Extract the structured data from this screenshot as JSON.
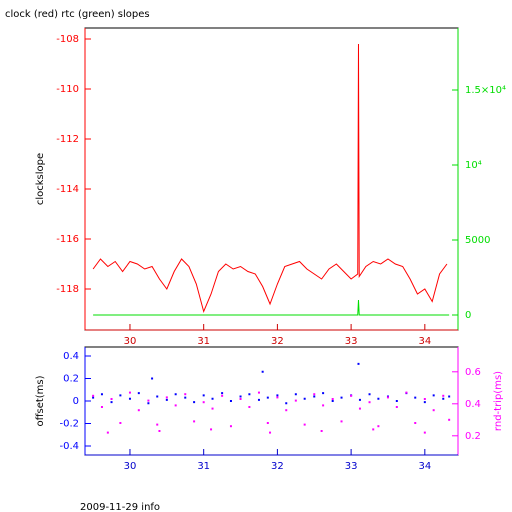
{
  "chart_data": [
    {
      "type": "line",
      "title": "clock (red) rtc (green) slopes",
      "ylabel": "clockslope",
      "xlim": [
        29.39,
        34.45
      ],
      "xticks": [
        30,
        31,
        32,
        33,
        34
      ],
      "ylim": [
        -119.64,
        -107.56
      ],
      "yticks": [
        -118,
        -116,
        -114,
        -112,
        -110,
        -108
      ],
      "y2lim": [
        -1000,
        19133
      ],
      "y2ticks": [
        0,
        5000,
        {
          "value": 10000,
          "label": "10⁴"
        },
        {
          "value": 15000,
          "label": "1.5×10⁴"
        }
      ],
      "axis_colors": {
        "x": "#cc0000",
        "y": "#ff0000",
        "y2": "#00dd00"
      },
      "series": [
        {
          "color": "#ff0000",
          "x": [
            29.5,
            29.6,
            29.7,
            29.8,
            29.9,
            30.0,
            30.1,
            30.2,
            30.3,
            30.4,
            30.5,
            30.6,
            30.7,
            30.8,
            30.9,
            31.0,
            31.1,
            31.2,
            31.3,
            31.4,
            31.5,
            31.6,
            31.7,
            31.8,
            31.9,
            32.0,
            32.1,
            32.2,
            32.3,
            32.4,
            32.5,
            32.6,
            32.7,
            32.8,
            32.9,
            33.0,
            33.09,
            33.1,
            33.11,
            33.2,
            33.3,
            33.4,
            33.5,
            33.6,
            33.7,
            33.8,
            33.9,
            34.0,
            34.1,
            34.2,
            34.3
          ],
          "values": [
            -117.2,
            -116.8,
            -117.1,
            -116.9,
            -117.3,
            -116.9,
            -117.0,
            -117.2,
            -117.1,
            -117.6,
            -118.0,
            -117.3,
            -116.8,
            -117.1,
            -117.8,
            -118.9,
            -118.2,
            -117.3,
            -117.0,
            -117.2,
            -117.1,
            -117.3,
            -117.4,
            -117.9,
            -118.6,
            -117.8,
            -117.1,
            -117.0,
            -116.9,
            -117.2,
            -117.4,
            -117.6,
            -117.2,
            -117.0,
            -117.3,
            -117.6,
            -117.4,
            -108.2,
            -117.5,
            -117.1,
            -116.9,
            -117.0,
            -116.8,
            -117.0,
            -117.1,
            -117.6,
            -118.2,
            -118.0,
            -118.5,
            -117.4,
            -117.0
          ]
        },
        {
          "color": "#00dd00",
          "axis": "y2",
          "x": [
            29.5,
            33.09,
            33.1,
            33.11,
            34.33
          ],
          "values": [
            0,
            0,
            1000,
            0,
            0
          ]
        }
      ]
    },
    {
      "type": "scatter",
      "ylabel": "offset(ms)",
      "y2label": "rnd-trip(ms)",
      "xlim": [
        29.39,
        34.45
      ],
      "xticks": [
        30,
        31,
        32,
        33,
        34
      ],
      "ylim": [
        -0.48,
        0.48
      ],
      "yticks": [
        -0.4,
        -0.2,
        0,
        0.2,
        0.4
      ],
      "y2lim": [
        0.08,
        0.755
      ],
      "y2ticks": [
        0.2,
        0.4,
        0.6
      ],
      "axis_colors": {
        "x": "#0000cc",
        "y": "#0000ff",
        "y2": "#ff00ff"
      },
      "series": [
        {
          "color": "#0000ff",
          "x": [
            29.5,
            29.62,
            29.75,
            29.87,
            30.0,
            30.12,
            30.25,
            30.37,
            30.5,
            30.62,
            30.75,
            30.87,
            31.0,
            31.12,
            31.25,
            31.37,
            31.5,
            31.62,
            31.75,
            31.87,
            32.0,
            32.12,
            32.25,
            32.37,
            32.5,
            32.62,
            32.75,
            32.87,
            33.0,
            33.12,
            33.25,
            33.37,
            33.5,
            33.62,
            33.75,
            33.87,
            34.0,
            34.12,
            34.25,
            34.33,
            30.3,
            31.8,
            33.1
          ],
          "values": [
            0.03,
            0.06,
            -0.01,
            0.05,
            0.02,
            0.07,
            -0.02,
            0.04,
            0.01,
            0.06,
            0.03,
            -0.01,
            0.05,
            0.02,
            0.07,
            0.0,
            0.04,
            0.06,
            0.01,
            0.03,
            0.05,
            -0.02,
            0.06,
            0.02,
            0.04,
            0.07,
            0.0,
            0.03,
            0.05,
            0.01,
            0.06,
            0.02,
            0.04,
            0.0,
            0.07,
            0.03,
            -0.01,
            0.05,
            0.02,
            0.04,
            0.2,
            0.26,
            0.33
          ]
        },
        {
          "color": "#ff00ff",
          "axis": "y2",
          "x": [
            29.5,
            29.62,
            29.75,
            29.87,
            30.0,
            30.12,
            30.25,
            30.37,
            30.5,
            30.62,
            30.75,
            30.87,
            31.0,
            31.12,
            31.25,
            31.37,
            31.5,
            31.62,
            31.75,
            31.87,
            32.0,
            32.12,
            32.25,
            32.37,
            32.5,
            32.62,
            32.75,
            32.87,
            33.0,
            33.12,
            33.25,
            33.37,
            33.5,
            33.62,
            33.75,
            33.87,
            34.0,
            34.12,
            34.25,
            34.33,
            29.7,
            30.4,
            31.1,
            31.9,
            32.6,
            33.3,
            34.0
          ],
          "values": [
            0.45,
            0.38,
            0.43,
            0.28,
            0.47,
            0.36,
            0.42,
            0.27,
            0.44,
            0.39,
            0.46,
            0.29,
            0.41,
            0.37,
            0.45,
            0.26,
            0.43,
            0.38,
            0.47,
            0.28,
            0.44,
            0.36,
            0.42,
            0.27,
            0.46,
            0.39,
            0.43,
            0.29,
            0.45,
            0.37,
            0.41,
            0.26,
            0.44,
            0.38,
            0.47,
            0.28,
            0.43,
            0.36,
            0.45,
            0.3,
            0.22,
            0.23,
            0.24,
            0.22,
            0.23,
            0.24,
            0.22
          ]
        }
      ]
    }
  ],
  "footer": "2009-11-29 info"
}
